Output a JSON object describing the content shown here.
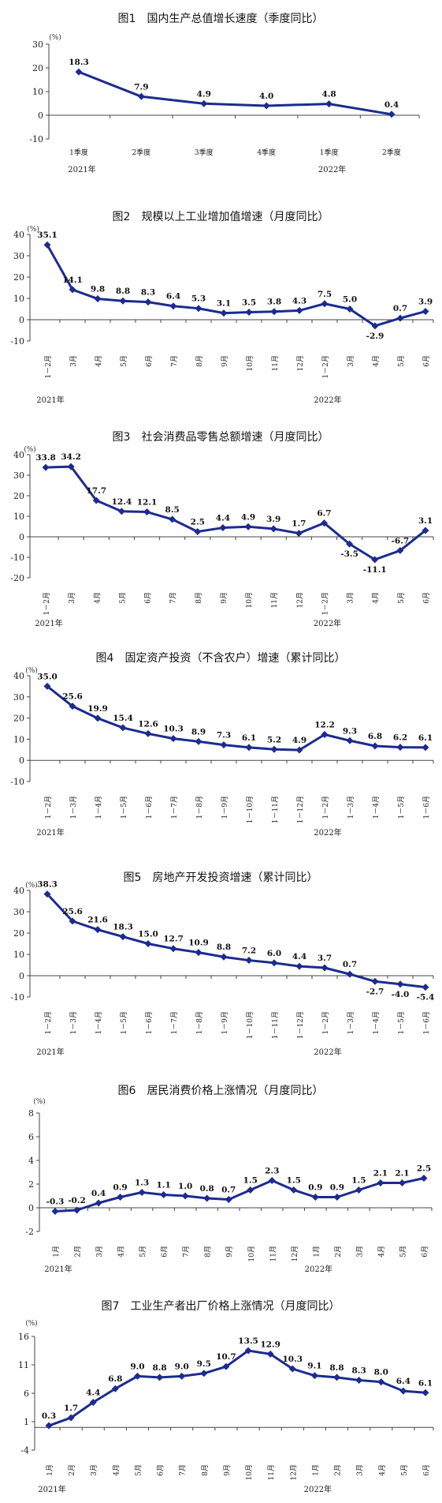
{
  "colors": {
    "line": "#1c2b8f",
    "axis": "#444444"
  },
  "chart_data": [
    {
      "type": "line",
      "title": "图1　国内生产总值增长速度（季度同比）",
      "unit": "(%)",
      "ylim": [
        -10,
        30
      ],
      "yticks": [
        -10,
        0,
        10,
        20,
        30
      ],
      "categories": [
        "1季度",
        "2季度",
        "3季度",
        "4季度",
        "1季度",
        "2季度"
      ],
      "values": [
        18.3,
        7.9,
        4.9,
        4.0,
        4.8,
        0.4
      ],
      "labels": [
        "18.3",
        "7.9",
        "4.9",
        "4.0",
        "4.8",
        "0.4"
      ],
      "year_labels": [
        {
          "index": 0,
          "text": "2021年"
        },
        {
          "index": 4,
          "text": "2022年"
        }
      ]
    },
    {
      "type": "line",
      "title": "图2　规模以上工业增加值增速（月度同比）",
      "unit": "(%)",
      "ylim": [
        -10,
        40
      ],
      "yticks": [
        -10,
        0,
        10,
        20,
        30,
        40
      ],
      "categories": [
        "1－2月",
        "3月",
        "4月",
        "5月",
        "6月",
        "7月",
        "8月",
        "9月",
        "10月",
        "11月",
        "12月",
        "1－2月",
        "3月",
        "4月",
        "5月",
        "6月"
      ],
      "values": [
        35.1,
        14.1,
        9.8,
        8.8,
        8.3,
        6.4,
        5.3,
        3.1,
        3.5,
        3.8,
        4.3,
        7.5,
        5.0,
        -2.9,
        0.7,
        3.9
      ],
      "labels": [
        "35.1",
        "14.1",
        "9.8",
        "8.8",
        "8.3",
        "6.4",
        "5.3",
        "3.1",
        "3.5",
        "3.8",
        "4.3",
        "7.5",
        "5.0",
        "-2.9",
        "0.7",
        "3.9"
      ],
      "year_labels": [
        {
          "index": 0,
          "text": "2021年"
        },
        {
          "index": 11,
          "text": "2022年"
        }
      ]
    },
    {
      "type": "line",
      "title": "图3　社会消费品零售总额增速（月度同比）",
      "unit": "(%)",
      "ylim": [
        -20,
        40
      ],
      "yticks": [
        -20,
        -10,
        0,
        10,
        20,
        30,
        40
      ],
      "categories": [
        "1－2月",
        "3月",
        "4月",
        "5月",
        "6月",
        "7月",
        "8月",
        "9月",
        "10月",
        "11月",
        "12月",
        "1－2月",
        "3月",
        "4月",
        "5月",
        "6月"
      ],
      "values": [
        33.8,
        34.2,
        17.7,
        12.4,
        12.1,
        8.5,
        2.5,
        4.4,
        4.9,
        3.9,
        1.7,
        6.7,
        -3.5,
        -11.1,
        -6.7,
        3.1
      ],
      "labels": [
        "33.8",
        "34.2",
        "17.7",
        "12.4",
        "12.1",
        "8.5",
        "2.5",
        "4.4",
        "4.9",
        "3.9",
        "1.7",
        "6.7",
        "-3.5",
        "-11.1",
        "-6.7",
        "3.1"
      ],
      "year_labels": [
        {
          "index": 0,
          "text": "2021年"
        },
        {
          "index": 11,
          "text": "2022年"
        }
      ]
    },
    {
      "type": "line",
      "title": "图4　固定资产投资（不含农户）增速（累计同比）",
      "unit": "(%)",
      "ylim": [
        -10,
        40
      ],
      "yticks": [
        -10,
        0,
        10,
        20,
        30,
        40
      ],
      "categories": [
        "1－2月",
        "1－3月",
        "1－4月",
        "1－5月",
        "1－6月",
        "1－7月",
        "1－8月",
        "1－9月",
        "1－10月",
        "1－11月",
        "1－12月",
        "1－2月",
        "1－3月",
        "1－4月",
        "1－5月",
        "1－6月"
      ],
      "values": [
        35.0,
        25.6,
        19.9,
        15.4,
        12.6,
        10.3,
        8.9,
        7.3,
        6.1,
        5.2,
        4.9,
        12.2,
        9.3,
        6.8,
        6.2,
        6.1
      ],
      "labels": [
        "35.0",
        "25.6",
        "19.9",
        "15.4",
        "12.6",
        "10.3",
        "8.9",
        "7.3",
        "6.1",
        "5.2",
        "4.9",
        "12.2",
        "9.3",
        "6.8",
        "6.2",
        "6.1"
      ],
      "year_labels": [
        {
          "index": 0,
          "text": "2021年"
        },
        {
          "index": 11,
          "text": "2022年"
        }
      ]
    },
    {
      "type": "line",
      "title": "图5　房地产开发投资增速（累计同比）",
      "unit": "(%)",
      "ylim": [
        -10,
        40
      ],
      "yticks": [
        -10,
        0,
        10,
        20,
        30,
        40
      ],
      "categories": [
        "1－2月",
        "1－3月",
        "1－4月",
        "1－5月",
        "1－6月",
        "1－7月",
        "1－8月",
        "1－9月",
        "1－10月",
        "1－11月",
        "1－12月",
        "1－2月",
        "1－3月",
        "1－4月",
        "1－5月",
        "1－6月"
      ],
      "values": [
        38.3,
        25.6,
        21.6,
        18.3,
        15.0,
        12.7,
        10.9,
        8.8,
        7.2,
        6.0,
        4.4,
        3.7,
        0.7,
        -2.7,
        -4.0,
        -5.4
      ],
      "labels": [
        "38.3",
        "25.6",
        "21.6",
        "18.3",
        "15.0",
        "12.7",
        "10.9",
        "8.8",
        "7.2",
        "6.0",
        "4.4",
        "3.7",
        "0.7",
        "-2.7",
        "-4.0",
        "-5.4"
      ],
      "year_labels": [
        {
          "index": 0,
          "text": "2021年"
        },
        {
          "index": 11,
          "text": "2022年"
        }
      ]
    },
    {
      "type": "line",
      "title": "图6　居民消费价格上涨情况（月度同比）",
      "unit": "(%)",
      "ylim": [
        -2,
        8
      ],
      "yticks": [
        -2,
        0,
        2,
        4,
        6,
        8
      ],
      "categories": [
        "1月",
        "2月",
        "3月",
        "4月",
        "5月",
        "6月",
        "7月",
        "8月",
        "9月",
        "10月",
        "11月",
        "12月",
        "1月",
        "2月",
        "3月",
        "4月",
        "5月",
        "6月"
      ],
      "values": [
        -0.3,
        -0.2,
        0.4,
        0.9,
        1.3,
        1.1,
        1.0,
        0.8,
        0.7,
        1.5,
        2.3,
        1.5,
        0.9,
        0.9,
        1.5,
        2.1,
        2.1,
        2.5
      ],
      "labels": [
        "-0.3",
        "-0.2",
        "0.4",
        "0.9",
        "1.3",
        "1.1",
        "1.0",
        "0.8",
        "0.7",
        "1.5",
        "2.3",
        "1.5",
        "0.9",
        "0.9",
        "1.5",
        "2.1",
        "2.1",
        "2.5"
      ],
      "year_labels": [
        {
          "index": 0,
          "text": "2021年"
        },
        {
          "index": 12,
          "text": "2022年"
        }
      ]
    },
    {
      "type": "line",
      "title": "图7　工业生产者出厂价格上涨情况（月度同比）",
      "unit": "(%)",
      "ylim": [
        -4,
        16
      ],
      "yticks": [
        -4,
        1,
        6,
        11,
        16
      ],
      "categories": [
        "1月",
        "2月",
        "3月",
        "4月",
        "5月",
        "6月",
        "7月",
        "8月",
        "9月",
        "10月",
        "11月",
        "12月",
        "1月",
        "2月",
        "3月",
        "4月",
        "5月",
        "6月"
      ],
      "values": [
        0.3,
        1.7,
        4.4,
        6.8,
        9.0,
        8.8,
        9.0,
        9.5,
        10.7,
        13.5,
        12.9,
        10.3,
        9.1,
        8.8,
        8.3,
        8.0,
        6.4,
        6.1
      ],
      "labels": [
        "0.3",
        "1.7",
        "4.4",
        "6.8",
        "9.0",
        "8.8",
        "9.0",
        "9.5",
        "10.7",
        "13.5",
        "12.9",
        "10.3",
        "9.1",
        "8.8",
        "8.3",
        "8.0",
        "6.4",
        "6.1"
      ],
      "year_labels": [
        {
          "index": 0,
          "text": "2021年"
        },
        {
          "index": 12,
          "text": "2022年"
        }
      ]
    }
  ]
}
